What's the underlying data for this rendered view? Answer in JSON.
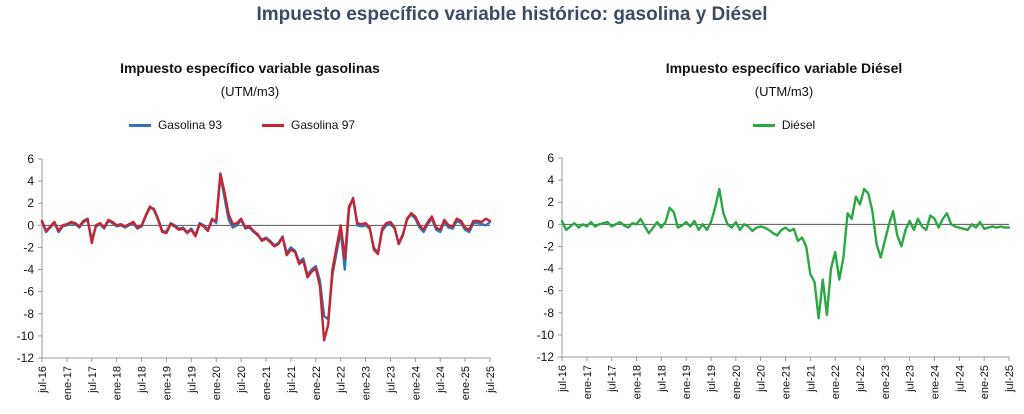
{
  "page": {
    "title": "Impuesto específico variable histórico: gasolina y Diésel"
  },
  "colors": {
    "gas93": "#2f74c0",
    "gas97": "#c5262f",
    "diesel": "#2aa843",
    "axis": "#999999",
    "zero": "#555555"
  },
  "chart_data": [
    {
      "type": "line",
      "title": "Impuesto específico variable gasolinas",
      "subtitle": "(UTM/m3)",
      "xlabel": "",
      "ylabel": "",
      "ylim": [
        -12,
        6
      ],
      "yticks": [
        6,
        4,
        2,
        0,
        -2,
        -4,
        -6,
        -8,
        -10,
        -12
      ],
      "x_ticks": [
        "jul-16",
        "ene-17",
        "jul-17",
        "ene-18",
        "jul-18",
        "ene-19",
        "jul-19",
        "ene-20",
        "jul-20",
        "ene-21",
        "jul-21",
        "ene-22",
        "jul-22",
        "ene-23",
        "jul-23",
        "ene-24",
        "jul-24",
        "ene-25",
        "jul-25"
      ],
      "legend": "top-center",
      "grid": false,
      "series": [
        {
          "name": "Gasolina 93",
          "x": [
            "jul-16",
            "ago-16",
            "sep-16",
            "oct-16",
            "nov-16",
            "dic-16",
            "ene-17",
            "feb-17",
            "mar-17",
            "abr-17",
            "may-17",
            "jun-17",
            "jul-17",
            "ago-17",
            "sep-17",
            "oct-17",
            "nov-17",
            "dic-17",
            "ene-18",
            "feb-18",
            "mar-18",
            "abr-18",
            "may-18",
            "jun-18",
            "jul-18",
            "ago-18",
            "sep-18",
            "oct-18",
            "nov-18",
            "dic-18",
            "ene-19",
            "feb-19",
            "mar-19",
            "abr-19",
            "may-19",
            "jun-19",
            "jul-19",
            "ago-19",
            "sep-19",
            "oct-19",
            "nov-19",
            "dic-19",
            "ene-20",
            "feb-20",
            "mar-20",
            "abr-20",
            "may-20",
            "jun-20",
            "jul-20",
            "ago-20",
            "sep-20",
            "oct-20",
            "nov-20",
            "dic-20",
            "ene-21",
            "feb-21",
            "mar-21",
            "abr-21",
            "may-21",
            "jun-21",
            "jul-21",
            "ago-21",
            "sep-21",
            "oct-21",
            "nov-21",
            "dic-21",
            "ene-22",
            "feb-22",
            "mar-22",
            "abr-22",
            "may-22",
            "jun-22",
            "jul-22",
            "ago-22",
            "sep-22",
            "oct-22",
            "nov-22",
            "dic-22",
            "ene-23",
            "feb-23",
            "mar-23",
            "abr-23",
            "may-23",
            "jun-23",
            "jul-23",
            "ago-23",
            "sep-23",
            "oct-23",
            "nov-23",
            "dic-23",
            "ene-24",
            "feb-24",
            "mar-24",
            "abr-24",
            "may-24",
            "jun-24",
            "jul-24",
            "ago-24",
            "sep-24",
            "oct-24",
            "nov-24",
            "dic-24",
            "ene-25",
            "feb-25",
            "mar-25",
            "abr-25",
            "may-25",
            "jun-25",
            "jul-25"
          ],
          "values": [
            0.3,
            -0.6,
            -0.2,
            0.2,
            -0.6,
            -0.1,
            0.0,
            0.2,
            0.1,
            -0.2,
            0.3,
            0.5,
            -1.3,
            -0.1,
            0.1,
            -0.3,
            0.4,
            0.2,
            -0.1,
            0.0,
            -0.2,
            0.0,
            0.2,
            -0.3,
            -0.1,
            0.8,
            1.6,
            1.5,
            0.6,
            -0.5,
            -0.6,
            0.2,
            0.0,
            -0.3,
            -0.2,
            -0.6,
            -0.3,
            -0.9,
            0.2,
            0.0,
            -0.4,
            0.6,
            0.2,
            4.5,
            2.5,
            0.5,
            -0.2,
            0.0,
            0.5,
            -0.3,
            -0.2,
            -0.6,
            -0.9,
            -1.3,
            -1.1,
            -1.4,
            -1.8,
            -1.6,
            -1.0,
            -2.5,
            -2.0,
            -2.3,
            -3.3,
            -3.0,
            -4.5,
            -4.0,
            -3.7,
            -5.0,
            -8.2,
            -8.5,
            -4.5,
            -2.5,
            -0.5,
            -4.0,
            1.5,
            2.5,
            0.0,
            -0.1,
            0.0,
            -0.3,
            -2.0,
            -2.5,
            -0.5,
            0.0,
            0.1,
            -0.3,
            -1.6,
            -0.8,
            0.5,
            1.0,
            0.6,
            -0.2,
            -0.6,
            0.1,
            0.6,
            -0.4,
            -0.6,
            0.3,
            -0.2,
            -0.3,
            0.4,
            0.2,
            -0.4,
            -0.6,
            0.2,
            0.2,
            0.1,
            0.0,
            0.3
          ]
        },
        {
          "name": "Gasolina 97",
          "x": [
            "jul-16",
            "ago-16",
            "sep-16",
            "oct-16",
            "nov-16",
            "dic-16",
            "ene-17",
            "feb-17",
            "mar-17",
            "abr-17",
            "may-17",
            "jun-17",
            "jul-17",
            "ago-17",
            "sep-17",
            "oct-17",
            "nov-17",
            "dic-17",
            "ene-18",
            "feb-18",
            "mar-18",
            "abr-18",
            "may-18",
            "jun-18",
            "jul-18",
            "ago-18",
            "sep-18",
            "oct-18",
            "nov-18",
            "dic-18",
            "ene-19",
            "feb-19",
            "mar-19",
            "abr-19",
            "may-19",
            "jun-19",
            "jul-19",
            "ago-19",
            "sep-19",
            "oct-19",
            "nov-19",
            "dic-19",
            "ene-20",
            "feb-20",
            "mar-20",
            "abr-20",
            "may-20",
            "jun-20",
            "jul-20",
            "ago-20",
            "sep-20",
            "oct-20",
            "nov-20",
            "dic-20",
            "ene-21",
            "feb-21",
            "mar-21",
            "abr-21",
            "may-21",
            "jun-21",
            "jul-21",
            "ago-21",
            "sep-21",
            "oct-21",
            "nov-21",
            "dic-21",
            "ene-22",
            "feb-22",
            "mar-22",
            "abr-22",
            "may-22",
            "jun-22",
            "jul-22",
            "ago-22",
            "sep-22",
            "oct-22",
            "nov-22",
            "dic-22",
            "ene-23",
            "feb-23",
            "mar-23",
            "abr-23",
            "may-23",
            "jun-23",
            "jul-23",
            "ago-23",
            "sep-23",
            "oct-23",
            "nov-23",
            "dic-23",
            "ene-24",
            "feb-24",
            "mar-24",
            "abr-24",
            "may-24",
            "jun-24",
            "jul-24",
            "ago-24",
            "sep-24",
            "oct-24",
            "nov-24",
            "dic-24",
            "ene-25",
            "feb-25",
            "mar-25",
            "abr-25",
            "may-25",
            "jun-25",
            "jul-25"
          ],
          "values": [
            0.4,
            -0.5,
            -0.1,
            0.3,
            -0.5,
            0.0,
            0.1,
            0.3,
            0.2,
            -0.1,
            0.4,
            0.6,
            -1.6,
            0.0,
            0.2,
            -0.2,
            0.5,
            0.3,
            0.0,
            0.1,
            -0.1,
            0.1,
            0.3,
            -0.2,
            0.0,
            0.9,
            1.7,
            1.4,
            0.5,
            -0.6,
            -0.7,
            0.1,
            -0.1,
            -0.4,
            -0.3,
            -0.7,
            -0.4,
            -1.0,
            0.1,
            -0.1,
            -0.5,
            0.5,
            0.4,
            4.7,
            3.0,
            1.0,
            0.1,
            0.2,
            0.6,
            -0.2,
            -0.1,
            -0.5,
            -0.8,
            -1.4,
            -1.2,
            -1.5,
            -1.9,
            -1.7,
            -1.1,
            -2.7,
            -2.2,
            -2.4,
            -3.5,
            -3.2,
            -4.7,
            -4.2,
            -3.9,
            -5.5,
            -10.4,
            -9.0,
            -4.0,
            -2.0,
            0.0,
            -3.0,
            1.7,
            2.4,
            0.2,
            0.1,
            0.2,
            -0.2,
            -2.2,
            -2.6,
            -0.3,
            0.2,
            0.3,
            -0.2,
            -1.7,
            -0.9,
            0.6,
            1.1,
            0.8,
            0.0,
            -0.4,
            0.3,
            0.8,
            -0.2,
            -0.4,
            0.5,
            0.0,
            -0.1,
            0.6,
            0.4,
            -0.2,
            -0.4,
            0.4,
            0.4,
            0.3,
            0.6,
            0.4
          ]
        }
      ]
    },
    {
      "type": "line",
      "title": "Impuesto específico variable Diésel",
      "subtitle": "(UTM/m3)",
      "xlabel": "",
      "ylabel": "",
      "ylim": [
        -12,
        6
      ],
      "yticks": [
        6,
        4,
        2,
        0,
        -2,
        -4,
        -6,
        -8,
        -10,
        -12
      ],
      "x_ticks": [
        "jul-16",
        "ene-17",
        "jul-17",
        "ene-18",
        "jul-18",
        "ene-19",
        "jul-19",
        "ene-20",
        "jul-20",
        "ene-21",
        "jul-21",
        "ene-22",
        "jul-22",
        "ene-23",
        "jul-23",
        "ene-24",
        "jul-24",
        "ene-25",
        "jul-25"
      ],
      "legend": "top-center",
      "grid": false,
      "series": [
        {
          "name": "Diésel",
          "x": [
            "jul-16",
            "ago-16",
            "sep-16",
            "oct-16",
            "nov-16",
            "dic-16",
            "ene-17",
            "feb-17",
            "mar-17",
            "abr-17",
            "may-17",
            "jun-17",
            "jul-17",
            "ago-17",
            "sep-17",
            "oct-17",
            "nov-17",
            "dic-17",
            "ene-18",
            "feb-18",
            "mar-18",
            "abr-18",
            "may-18",
            "jun-18",
            "jul-18",
            "ago-18",
            "sep-18",
            "oct-18",
            "nov-18",
            "dic-18",
            "ene-19",
            "feb-19",
            "mar-19",
            "abr-19",
            "may-19",
            "jun-19",
            "jul-19",
            "ago-19",
            "sep-19",
            "oct-19",
            "nov-19",
            "dic-19",
            "ene-20",
            "feb-20",
            "mar-20",
            "abr-20",
            "may-20",
            "jun-20",
            "jul-20",
            "ago-20",
            "sep-20",
            "oct-20",
            "nov-20",
            "dic-20",
            "ene-21",
            "feb-21",
            "mar-21",
            "abr-21",
            "may-21",
            "jun-21",
            "jul-21",
            "ago-21",
            "sep-21",
            "oct-21",
            "nov-21",
            "dic-21",
            "ene-22",
            "feb-22",
            "mar-22",
            "abr-22",
            "may-22",
            "jun-22",
            "jul-22",
            "ago-22",
            "sep-22",
            "oct-22",
            "nov-22",
            "dic-22",
            "ene-23",
            "feb-23",
            "mar-23",
            "abr-23",
            "may-23",
            "jun-23",
            "jul-23",
            "ago-23",
            "sep-23",
            "oct-23",
            "nov-23",
            "dic-23",
            "ene-24",
            "feb-24",
            "mar-24",
            "abr-24",
            "may-24",
            "jun-24",
            "jul-24",
            "ago-24",
            "sep-24",
            "oct-24",
            "nov-24",
            "dic-24",
            "ene-25",
            "feb-25",
            "mar-25",
            "abr-25",
            "may-25",
            "jun-25",
            "jul-25"
          ],
          "values": [
            0.3,
            -0.5,
            -0.2,
            0.1,
            -0.3,
            0.0,
            -0.2,
            0.2,
            -0.2,
            0.0,
            0.1,
            0.2,
            -0.2,
            0.0,
            0.2,
            -0.1,
            -0.3,
            0.1,
            0.0,
            0.5,
            -0.2,
            -0.8,
            -0.3,
            0.2,
            -0.3,
            0.2,
            1.5,
            1.1,
            -0.3,
            -0.1,
            0.2,
            -0.2,
            0.3,
            -0.5,
            0.0,
            -0.5,
            0.2,
            1.5,
            3.2,
            1.0,
            0.0,
            -0.3,
            0.2,
            -0.5,
            0.0,
            -0.2,
            -0.6,
            -0.3,
            -0.2,
            -0.3,
            -0.5,
            -0.8,
            -1.0,
            -0.5,
            -0.3,
            -0.6,
            -0.4,
            -1.5,
            -1.2,
            -2.0,
            -4.5,
            -5.2,
            -8.5,
            -5.0,
            -8.2,
            -4.0,
            -2.5,
            -5.0,
            -3.0,
            1.0,
            0.5,
            2.5,
            1.8,
            3.2,
            2.8,
            1.2,
            -1.8,
            -3.0,
            -1.5,
            0.0,
            1.2,
            -1.0,
            -2.0,
            -0.5,
            0.3,
            -0.5,
            0.5,
            -0.2,
            -0.5,
            0.8,
            0.5,
            -0.3,
            0.5,
            1.0,
            0.0,
            -0.2,
            -0.3,
            -0.4,
            -0.5,
            0.0,
            -0.3,
            0.2,
            -0.4,
            -0.3,
            -0.2,
            -0.3,
            -0.2,
            -0.3,
            -0.3
          ]
        }
      ]
    }
  ]
}
